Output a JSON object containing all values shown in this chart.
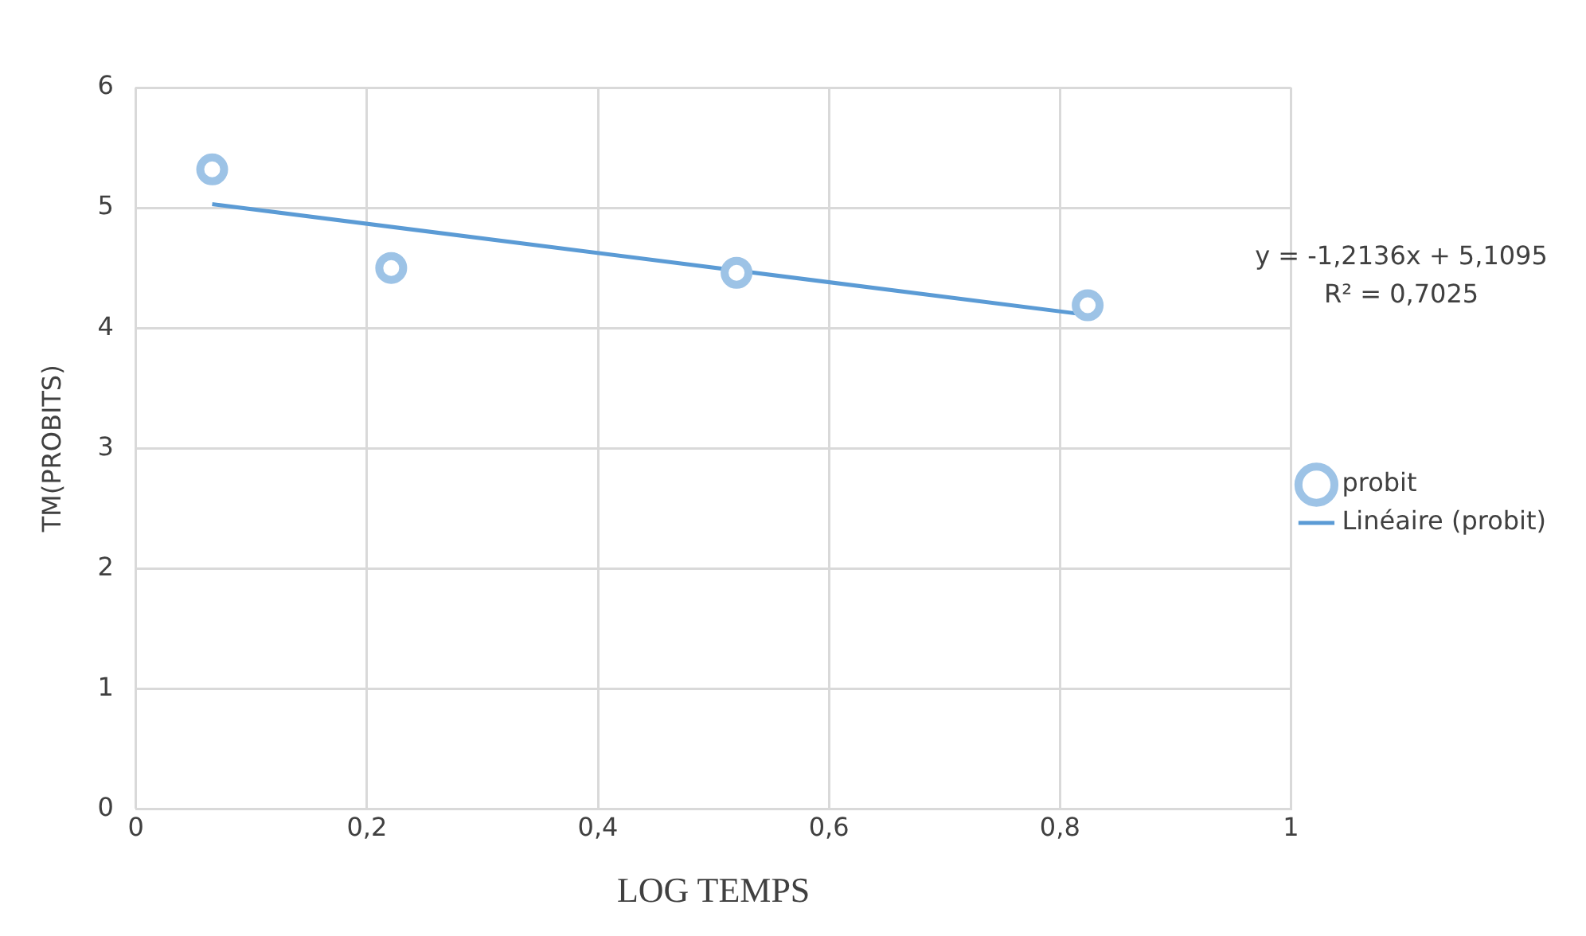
{
  "chart_data": {
    "type": "scatter",
    "xlabel": "LOG TEMPS",
    "ylabel": "TM(PROBITS)",
    "xlim": [
      0,
      1
    ],
    "xticks": [
      0,
      {
        "value": 0.2,
        "label": "0,2"
      },
      {
        "value": 0.4,
        "label": "0,4"
      },
      {
        "value": 0.6,
        "label": "0,6"
      },
      {
        "value": 0.8,
        "label": "0,8"
      },
      1
    ],
    "ylim": [
      0,
      6
    ],
    "yticks": [
      0,
      1,
      2,
      3,
      4,
      5,
      6
    ],
    "grid": true,
    "legend": "right",
    "annotations": [
      "y = -1,2136x + 5,1095",
      "R² = 0,7025"
    ],
    "series": [
      {
        "name": "probit",
        "marker": "circle",
        "color": "#9dc3e6",
        "x": [
          0.066,
          0.221,
          0.52,
          0.824
        ],
        "values": [
          5.32,
          4.5,
          4.46,
          4.19
        ]
      },
      {
        "name": "Linéaire (probit)",
        "type": "line",
        "marker": "none",
        "color": "#5b9bd5",
        "line_style": "solid",
        "x": [
          0.066,
          0.824
        ],
        "values": [
          5.03,
          4.11
        ]
      }
    ]
  }
}
